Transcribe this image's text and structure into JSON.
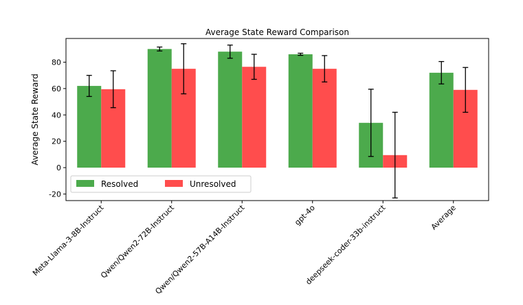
{
  "chart_data": {
    "type": "bar",
    "title": "Average State Reward Comparison",
    "xlabel": "",
    "ylabel": "Average State Reward",
    "ylim": [
      -25,
      98
    ],
    "yticks": [
      -20,
      0,
      20,
      40,
      60,
      80
    ],
    "grid": false,
    "legend_position": "lower-left",
    "categories": [
      "Meta-Llama-3-8B-Instruct",
      "Qwen/Qwen2-72B-Instruct",
      "Qwen/Qwen2-57B-A14B-Instruct",
      "gpt-4o",
      "deepseek-coder-33b-instruct",
      "Average"
    ],
    "series": [
      {
        "name": "Resolved",
        "color": "#4caa4c",
        "values": [
          62,
          90,
          88,
          86,
          34,
          72
        ],
        "error": [
          8,
          1.5,
          5,
          0.8,
          25.5,
          8.5
        ]
      },
      {
        "name": "Unresolved",
        "color": "#ff4d4d",
        "values": [
          59.5,
          75,
          76.5,
          75,
          9.5,
          59
        ],
        "error": [
          14,
          19,
          9.5,
          10,
          32.5,
          17
        ]
      }
    ]
  }
}
